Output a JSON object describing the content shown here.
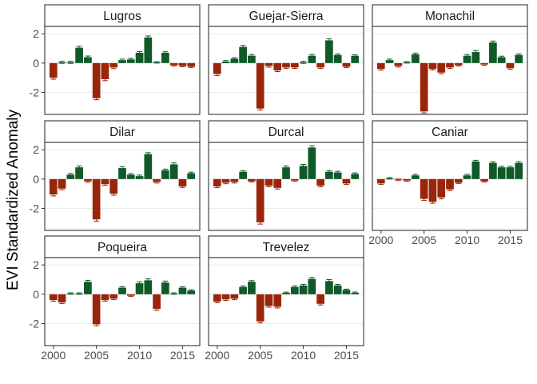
{
  "chart_data": {
    "type": "bar",
    "ylabel": "EVI Standardized Anomaly",
    "xlabel": "",
    "ylim": [
      -3.5,
      2.5
    ],
    "xlim": [
      1999,
      2017
    ],
    "yticks": [
      -2,
      0,
      2
    ],
    "ytick_labels": [
      "-2",
      "0",
      "2"
    ],
    "xticks": [
      2000,
      2005,
      2010,
      2015
    ],
    "xtick_labels": [
      "2000",
      "2005",
      "2010",
      "2015"
    ],
    "grid": true,
    "colors": {
      "negative": "#99260a",
      "positive": "#0f5a28",
      "panel_border": "#333333",
      "strip_fill": "#ffffff",
      "grid": "#ebebeb"
    },
    "years": [
      2000,
      2001,
      2002,
      2003,
      2004,
      2005,
      2006,
      2007,
      2008,
      2009,
      2010,
      2011,
      2012,
      2013,
      2014,
      2015,
      2016
    ],
    "panels": [
      {
        "name": "Lugros",
        "values": [
          -1.0,
          0.05,
          0.05,
          1.05,
          0.4,
          -2.4,
          -1.1,
          -0.3,
          0.2,
          0.25,
          0.7,
          1.75,
          0.05,
          0.7,
          -0.15,
          -0.2,
          -0.25
        ],
        "errors": [
          0.1,
          0.07,
          0.07,
          0.1,
          0.08,
          0.1,
          0.1,
          0.08,
          0.07,
          0.07,
          0.08,
          0.1,
          0.05,
          0.07,
          0.05,
          0.05,
          0.05
        ]
      },
      {
        "name": "Guejar-Sierra",
        "values": [
          -0.75,
          0.1,
          0.3,
          1.1,
          0.5,
          -3.1,
          -0.2,
          -0.5,
          -0.3,
          -0.3,
          0.05,
          0.5,
          -0.3,
          1.55,
          0.55,
          -0.25,
          0.5
        ],
        "errors": [
          0.1,
          0.07,
          0.07,
          0.1,
          0.08,
          0.1,
          0.08,
          0.08,
          0.07,
          0.07,
          0.07,
          0.08,
          0.07,
          0.1,
          0.07,
          0.05,
          0.07
        ]
      },
      {
        "name": "Monachil",
        "values": [
          -0.4,
          0.2,
          -0.2,
          0.05,
          0.6,
          -3.3,
          -0.4,
          -0.65,
          -0.3,
          -0.15,
          0.5,
          0.75,
          -0.1,
          1.4,
          0.4,
          -0.35,
          0.55
        ],
        "errors": [
          0.08,
          0.07,
          0.07,
          0.05,
          0.08,
          0.1,
          0.07,
          0.08,
          0.07,
          0.05,
          0.08,
          0.1,
          0.05,
          0.1,
          0.07,
          0.07,
          0.07
        ]
      },
      {
        "name": "Dilar",
        "values": [
          -1.05,
          -0.65,
          0.3,
          0.8,
          -0.15,
          -2.75,
          -0.35,
          -1.0,
          0.75,
          0.3,
          0.2,
          1.7,
          -0.2,
          0.6,
          1.0,
          -0.5,
          0.4
        ],
        "errors": [
          0.1,
          0.08,
          0.08,
          0.1,
          0.07,
          0.12,
          0.08,
          0.1,
          0.1,
          0.07,
          0.07,
          0.1,
          0.07,
          0.08,
          0.1,
          0.07,
          0.07
        ]
      },
      {
        "name": "Durcal",
        "values": [
          -0.5,
          -0.25,
          -0.2,
          0.5,
          -0.15,
          -2.95,
          -0.45,
          -0.6,
          0.8,
          -0.1,
          0.9,
          2.15,
          -0.45,
          0.5,
          0.45,
          -0.3,
          0.35
        ],
        "errors": [
          0.08,
          0.07,
          0.07,
          0.07,
          0.05,
          0.12,
          0.08,
          0.08,
          0.1,
          0.05,
          0.1,
          0.12,
          0.08,
          0.08,
          0.08,
          0.07,
          0.07
        ]
      },
      {
        "name": "Caniar",
        "values": [
          -0.3,
          0.05,
          -0.05,
          -0.1,
          0.25,
          -1.35,
          -1.55,
          -1.25,
          -0.7,
          -0.25,
          0.25,
          1.2,
          -0.15,
          1.1,
          0.8,
          0.8,
          1.1
        ],
        "errors": [
          0.07,
          0.05,
          0.05,
          0.05,
          0.07,
          0.1,
          0.1,
          0.1,
          0.08,
          0.05,
          0.07,
          0.08,
          0.05,
          0.08,
          0.07,
          0.07,
          0.08
        ]
      },
      {
        "name": "Poqueira",
        "values": [
          -0.4,
          -0.55,
          0.05,
          0.05,
          0.85,
          -2.05,
          -0.4,
          -0.3,
          0.45,
          -0.1,
          0.75,
          0.95,
          -1.0,
          0.8,
          0.05,
          0.45,
          0.25
        ],
        "errors": [
          0.08,
          0.08,
          0.05,
          0.05,
          0.1,
          0.1,
          0.07,
          0.07,
          0.07,
          0.05,
          0.1,
          0.1,
          0.1,
          0.1,
          0.05,
          0.07,
          0.05
        ]
      },
      {
        "name": "Trevelez",
        "values": [
          -0.5,
          -0.35,
          -0.3,
          0.5,
          0.85,
          -1.85,
          -0.8,
          -0.85,
          0.1,
          0.5,
          0.6,
          1.05,
          -0.65,
          0.9,
          0.6,
          0.3,
          0.1
        ],
        "errors": [
          0.08,
          0.07,
          0.07,
          0.07,
          0.08,
          0.1,
          0.08,
          0.08,
          0.05,
          0.07,
          0.08,
          0.1,
          0.08,
          0.1,
          0.07,
          0.05,
          0.05
        ]
      }
    ]
  }
}
